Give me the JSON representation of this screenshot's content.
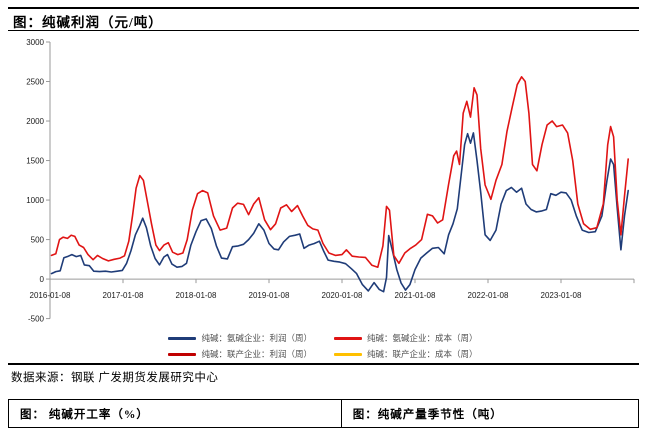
{
  "report": {
    "chart1_title": "图：纯碱利润（元/吨）",
    "source_line": "数据来源：钢联 广发期货发展研究中心",
    "section2_title": "图： 纯碱开工率（%）",
    "section3_title": "图：纯碱产量季节性（吨）"
  },
  "colors": {
    "profit_line_blue": "#1F3C78",
    "cost_line_red": "#E01414",
    "joint_profit_dark_red": "#C00000",
    "joint_cost_yellow": "#FFC000",
    "axis_gray": "#9A9A9A",
    "tick_text": "#1a1a1a"
  },
  "chart_data": {
    "type": "line",
    "title": "图：纯碱利润（元/吨）",
    "xlabel": "",
    "ylabel": "",
    "ylim": [
      -500,
      3000
    ],
    "y_ticks": [
      3000,
      2500,
      2000,
      1500,
      1000,
      500,
      0,
      -500
    ],
    "x_tick_labels": [
      "2016-01-08",
      "2017-01-08",
      "2018-01-08",
      "2019-01-08",
      "2020-01-08",
      "2021-01-08",
      "2022-01-08",
      "2023-01-08"
    ],
    "x_tick_years": [
      2016,
      2017,
      2018,
      2019,
      2020,
      2021,
      2022,
      2023
    ],
    "grid": false,
    "legend_position": "bottom",
    "legend": [
      {
        "label": "纯碱：氨碱企业：利润（周）",
        "color": "#1F3C78"
      },
      {
        "label": "纯碱：氨碱企业：成本（周）",
        "color": "#E01414"
      },
      {
        "label": "纯碱：联产企业：利润（周）",
        "color": "#C00000"
      },
      {
        "label": "纯碱：联产企业：成本（周）",
        "color": "#FFC000"
      }
    ],
    "series": [
      {
        "name": "纯碱：氨碱企业：利润（周）",
        "color": "#1F3C78",
        "points": [
          [
            2016.02,
            70
          ],
          [
            2016.08,
            95
          ],
          [
            2016.14,
            105
          ],
          [
            2016.19,
            270
          ],
          [
            2016.25,
            290
          ],
          [
            2016.3,
            310
          ],
          [
            2016.36,
            285
          ],
          [
            2016.42,
            300
          ],
          [
            2016.47,
            180
          ],
          [
            2016.54,
            170
          ],
          [
            2016.6,
            100
          ],
          [
            2016.68,
            95
          ],
          [
            2016.76,
            100
          ],
          [
            2016.84,
            90
          ],
          [
            2016.92,
            100
          ],
          [
            2016.99,
            110
          ],
          [
            2017.05,
            200
          ],
          [
            2017.11,
            360
          ],
          [
            2017.17,
            560
          ],
          [
            2017.23,
            680
          ],
          [
            2017.27,
            770
          ],
          [
            2017.32,
            650
          ],
          [
            2017.38,
            420
          ],
          [
            2017.44,
            260
          ],
          [
            2017.5,
            180
          ],
          [
            2017.56,
            280
          ],
          [
            2017.61,
            310
          ],
          [
            2017.67,
            190
          ],
          [
            2017.74,
            150
          ],
          [
            2017.81,
            160
          ],
          [
            2017.87,
            200
          ],
          [
            2017.93,
            430
          ],
          [
            2018.0,
            600
          ],
          [
            2018.07,
            740
          ],
          [
            2018.14,
            760
          ],
          [
            2018.21,
            640
          ],
          [
            2018.28,
            420
          ],
          [
            2018.35,
            265
          ],
          [
            2018.43,
            255
          ],
          [
            2018.5,
            410
          ],
          [
            2018.58,
            420
          ],
          [
            2018.65,
            440
          ],
          [
            2018.72,
            500
          ],
          [
            2018.79,
            580
          ],
          [
            2018.86,
            700
          ],
          [
            2018.93,
            620
          ],
          [
            2019.0,
            450
          ],
          [
            2019.07,
            380
          ],
          [
            2019.13,
            370
          ],
          [
            2019.2,
            470
          ],
          [
            2019.28,
            540
          ],
          [
            2019.36,
            555
          ],
          [
            2019.42,
            570
          ],
          [
            2019.48,
            390
          ],
          [
            2019.55,
            430
          ],
          [
            2019.62,
            450
          ],
          [
            2019.69,
            480
          ],
          [
            2019.75,
            350
          ],
          [
            2019.81,
            240
          ],
          [
            2019.89,
            225
          ],
          [
            2019.97,
            215
          ],
          [
            2020.05,
            195
          ],
          [
            2020.13,
            130
          ],
          [
            2020.2,
            70
          ],
          [
            2020.28,
            -70
          ],
          [
            2020.36,
            -150
          ],
          [
            2020.44,
            -45
          ],
          [
            2020.51,
            -130
          ],
          [
            2020.57,
            -160
          ],
          [
            2020.61,
            20
          ],
          [
            2020.64,
            550
          ],
          [
            2020.69,
            360
          ],
          [
            2020.75,
            120
          ],
          [
            2020.81,
            -50
          ],
          [
            2020.87,
            -140
          ],
          [
            2020.93,
            -70
          ],
          [
            2021.0,
            120
          ],
          [
            2021.08,
            265
          ],
          [
            2021.16,
            330
          ],
          [
            2021.24,
            390
          ],
          [
            2021.32,
            400
          ],
          [
            2021.4,
            320
          ],
          [
            2021.46,
            560
          ],
          [
            2021.52,
            700
          ],
          [
            2021.58,
            890
          ],
          [
            2021.63,
            1300
          ],
          [
            2021.68,
            1700
          ],
          [
            2021.72,
            1840
          ],
          [
            2021.76,
            1720
          ],
          [
            2021.8,
            1850
          ],
          [
            2021.85,
            1500
          ],
          [
            2021.9,
            1100
          ],
          [
            2021.96,
            560
          ],
          [
            2022.03,
            490
          ],
          [
            2022.11,
            620
          ],
          [
            2022.18,
            950
          ],
          [
            2022.25,
            1120
          ],
          [
            2022.32,
            1160
          ],
          [
            2022.39,
            1100
          ],
          [
            2022.46,
            1150
          ],
          [
            2022.52,
            950
          ],
          [
            2022.59,
            880
          ],
          [
            2022.66,
            850
          ],
          [
            2022.73,
            860
          ],
          [
            2022.8,
            880
          ],
          [
            2022.86,
            1080
          ],
          [
            2022.93,
            1060
          ],
          [
            2023.0,
            1100
          ],
          [
            2023.07,
            1090
          ],
          [
            2023.14,
            1000
          ],
          [
            2023.21,
            800
          ],
          [
            2023.29,
            620
          ],
          [
            2023.38,
            590
          ],
          [
            2023.47,
            600
          ],
          [
            2023.56,
            800
          ],
          [
            2023.63,
            1250
          ],
          [
            2023.68,
            1520
          ],
          [
            2023.72,
            1450
          ],
          [
            2023.77,
            900
          ],
          [
            2023.82,
            370
          ],
          [
            2023.87,
            800
          ],
          [
            2023.92,
            1120
          ]
        ]
      },
      {
        "name": "纯碱：氨碱企业：成本（周）",
        "color": "#E01414",
        "points": [
          [
            2016.02,
            300
          ],
          [
            2016.08,
            320
          ],
          [
            2016.13,
            500
          ],
          [
            2016.18,
            530
          ],
          [
            2016.24,
            515
          ],
          [
            2016.29,
            555
          ],
          [
            2016.34,
            540
          ],
          [
            2016.4,
            430
          ],
          [
            2016.46,
            400
          ],
          [
            2016.52,
            310
          ],
          [
            2016.59,
            245
          ],
          [
            2016.65,
            300
          ],
          [
            2016.72,
            260
          ],
          [
            2016.8,
            230
          ],
          [
            2016.88,
            250
          ],
          [
            2016.96,
            265
          ],
          [
            2017.02,
            295
          ],
          [
            2017.08,
            480
          ],
          [
            2017.13,
            800
          ],
          [
            2017.18,
            1150
          ],
          [
            2017.23,
            1310
          ],
          [
            2017.28,
            1250
          ],
          [
            2017.33,
            1000
          ],
          [
            2017.39,
            700
          ],
          [
            2017.45,
            430
          ],
          [
            2017.5,
            360
          ],
          [
            2017.56,
            430
          ],
          [
            2017.62,
            460
          ],
          [
            2017.68,
            340
          ],
          [
            2017.75,
            310
          ],
          [
            2017.82,
            330
          ],
          [
            2017.88,
            500
          ],
          [
            2017.95,
            875
          ],
          [
            2018.02,
            1080
          ],
          [
            2018.09,
            1120
          ],
          [
            2018.16,
            1090
          ],
          [
            2018.24,
            800
          ],
          [
            2018.33,
            620
          ],
          [
            2018.42,
            645
          ],
          [
            2018.5,
            900
          ],
          [
            2018.57,
            960
          ],
          [
            2018.65,
            945
          ],
          [
            2018.72,
            815
          ],
          [
            2018.79,
            950
          ],
          [
            2018.86,
            1030
          ],
          [
            2018.94,
            750
          ],
          [
            2019.02,
            625
          ],
          [
            2019.09,
            700
          ],
          [
            2019.16,
            900
          ],
          [
            2019.24,
            940
          ],
          [
            2019.31,
            855
          ],
          [
            2019.39,
            930
          ],
          [
            2019.46,
            800
          ],
          [
            2019.53,
            680
          ],
          [
            2019.6,
            635
          ],
          [
            2019.67,
            620
          ],
          [
            2019.74,
            450
          ],
          [
            2019.82,
            330
          ],
          [
            2019.91,
            300
          ],
          [
            2020.0,
            310
          ],
          [
            2020.06,
            370
          ],
          [
            2020.14,
            290
          ],
          [
            2020.23,
            280
          ],
          [
            2020.32,
            275
          ],
          [
            2020.41,
            175
          ],
          [
            2020.49,
            150
          ],
          [
            2020.56,
            420
          ],
          [
            2020.61,
            920
          ],
          [
            2020.65,
            870
          ],
          [
            2020.71,
            300
          ],
          [
            2020.78,
            200
          ],
          [
            2020.86,
            330
          ],
          [
            2020.94,
            390
          ],
          [
            2021.01,
            430
          ],
          [
            2021.09,
            500
          ],
          [
            2021.17,
            820
          ],
          [
            2021.24,
            800
          ],
          [
            2021.31,
            710
          ],
          [
            2021.38,
            750
          ],
          [
            2021.46,
            1200
          ],
          [
            2021.53,
            1560
          ],
          [
            2021.57,
            1620
          ],
          [
            2021.61,
            1450
          ],
          [
            2021.66,
            2100
          ],
          [
            2021.71,
            2250
          ],
          [
            2021.76,
            2050
          ],
          [
            2021.81,
            2420
          ],
          [
            2021.85,
            2330
          ],
          [
            2021.9,
            1650
          ],
          [
            2021.96,
            1190
          ],
          [
            2022.04,
            1010
          ],
          [
            2022.11,
            1250
          ],
          [
            2022.19,
            1450
          ],
          [
            2022.26,
            1870
          ],
          [
            2022.33,
            2170
          ],
          [
            2022.4,
            2460
          ],
          [
            2022.46,
            2560
          ],
          [
            2022.51,
            2500
          ],
          [
            2022.56,
            2100
          ],
          [
            2022.61,
            1450
          ],
          [
            2022.67,
            1370
          ],
          [
            2022.74,
            1700
          ],
          [
            2022.81,
            1950
          ],
          [
            2022.88,
            2000
          ],
          [
            2022.94,
            1930
          ],
          [
            2023.02,
            1950
          ],
          [
            2023.09,
            1850
          ],
          [
            2023.16,
            1500
          ],
          [
            2023.23,
            950
          ],
          [
            2023.31,
            700
          ],
          [
            2023.4,
            630
          ],
          [
            2023.49,
            650
          ],
          [
            2023.58,
            950
          ],
          [
            2023.64,
            1700
          ],
          [
            2023.68,
            1930
          ],
          [
            2023.72,
            1800
          ],
          [
            2023.77,
            1000
          ],
          [
            2023.82,
            560
          ],
          [
            2023.87,
            1050
          ],
          [
            2023.92,
            1520
          ]
        ]
      },
      {
        "name": "纯碱：联产企业：利润（周）",
        "color": "#C00000",
        "points": []
      },
      {
        "name": "纯碱：联产企业：成本（周）",
        "color": "#FFC000",
        "points": []
      }
    ]
  }
}
